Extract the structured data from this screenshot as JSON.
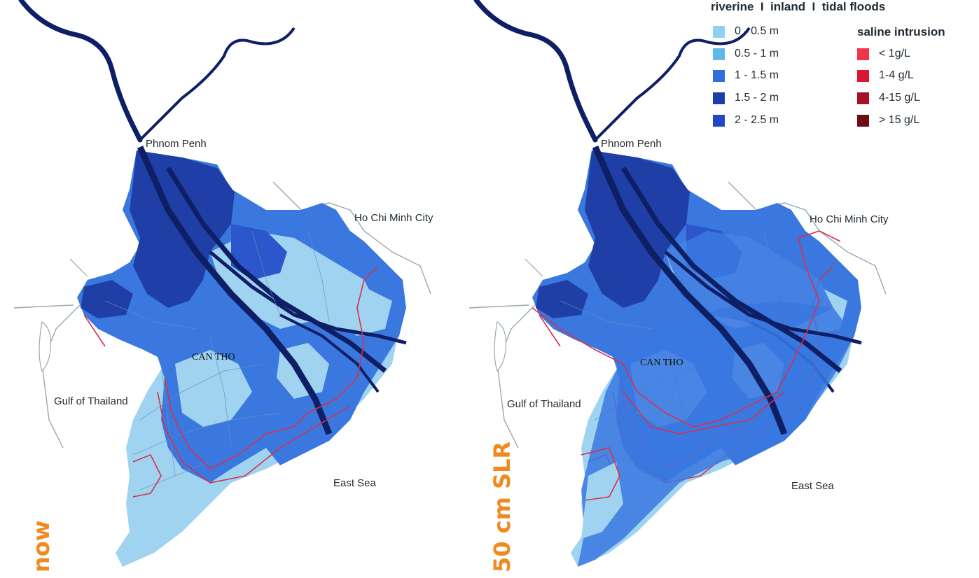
{
  "maps": [
    {
      "id": "now",
      "scenario_label": "now",
      "places": {
        "phnom_penh": "Phnom Penh",
        "ho_chi_minh_city": "Ho Chi Minh City",
        "can_tho": "CAN THO",
        "gulf_of_thailand": "Gulf of Thailand",
        "east_sea": "East Sea"
      }
    },
    {
      "id": "slr50",
      "scenario_label": "50 cm SLR",
      "places": {
        "phnom_penh": "Phnom Penh",
        "ho_chi_minh_city": "Ho Chi Minh City",
        "can_tho": "CAN THO",
        "gulf_of_thailand": "Gulf of Thailand",
        "east_sea": "East Sea"
      }
    }
  ],
  "legend": {
    "flood_title": "riverine  I  inland  I  tidal floods",
    "flood_classes": [
      {
        "label": "0 - 0.5 m",
        "color": "#8fd0ee"
      },
      {
        "label": "0.5 - 1 m",
        "color": "#5fb7ea"
      },
      {
        "label": "1 - 1.5 m",
        "color": "#2f6fe0"
      },
      {
        "label": "1.5 - 2 m",
        "color": "#1b3fa8"
      },
      {
        "label": "2 - 2.5 m",
        "color": "#2446c4"
      }
    ],
    "saline_title": "saline intrusion",
    "saline_classes": [
      {
        "label": "< 1g/L",
        "color": "#f2344a"
      },
      {
        "label": "1-4 g/L",
        "color": "#dd1533"
      },
      {
        "label": "4-15 g/L",
        "color": "#a51125"
      },
      {
        "label": "> 15 g/L",
        "color": "#6e0c15"
      }
    ]
  },
  "colors": {
    "river": "#0f1f66",
    "shallow": "#9fd3ef",
    "medium": "#3a78e0",
    "deep": "#1f3fa6",
    "saline_line": "#d8304a",
    "coast_outline": "#9aa8ad",
    "scenario_label": "#f08a1e"
  }
}
